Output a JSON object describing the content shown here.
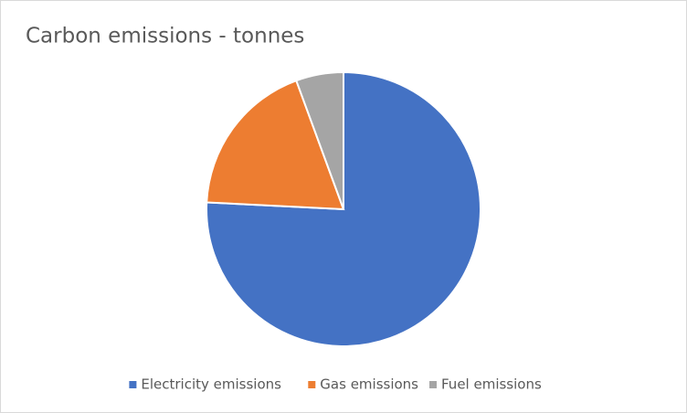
{
  "chart_data": {
    "type": "pie",
    "title": "Carbon emissions - tonnes",
    "categories": [
      "Electricity emissions",
      "Gas emissions",
      "Fuel emissions"
    ],
    "values": [
      75.8,
      18.6,
      5.6
    ],
    "colors": [
      "#4472c4",
      "#ed7d31",
      "#a5a5a5"
    ],
    "legend": "bottom"
  }
}
